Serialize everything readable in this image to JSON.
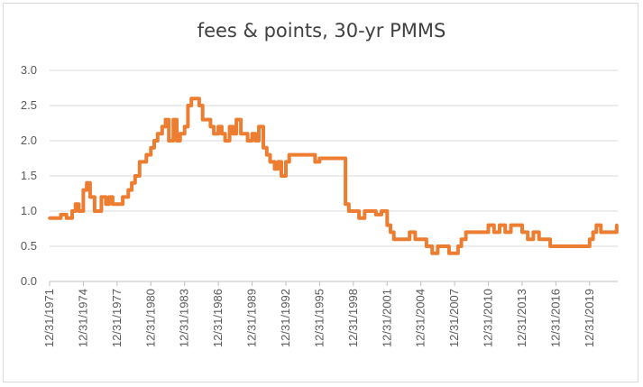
{
  "chart_data": {
    "type": "line",
    "title": "fees & points, 30-yr PMMS",
    "xlabel": "",
    "ylabel": "",
    "ylim": [
      0,
      3
    ],
    "yticks": [
      "0.0",
      "0.5",
      "1.0",
      "1.5",
      "2.0",
      "2.5",
      "3.0"
    ],
    "xticks": [
      "12/31/1971",
      "12/31/1974",
      "12/31/1977",
      "12/31/1980",
      "12/31/1983",
      "12/31/1986",
      "12/31/1989",
      "12/31/1992",
      "12/31/1995",
      "12/31/1998",
      "12/31/2001",
      "12/31/2004",
      "12/31/2007",
      "12/31/2010",
      "12/31/2013",
      "12/31/2016",
      "12/31/2019"
    ],
    "grid": true,
    "legend": "none",
    "colors": {
      "line": "#ED7D31",
      "grid": "#d9d9d9",
      "axis": "#bfbfbf"
    },
    "series": [
      {
        "x": [
          1971.0,
          1971.5,
          1972.0,
          1972.5,
          1973.0,
          1973.3,
          1973.6,
          1974.0,
          1974.3,
          1974.6,
          1975.0,
          1975.3,
          1975.6,
          1976.0,
          1976.3,
          1976.6,
          1977.0,
          1977.5,
          1978.0,
          1978.3,
          1978.6,
          1979.0,
          1979.3,
          1979.6,
          1980.0,
          1980.3,
          1980.6,
          1981.0,
          1981.3,
          1981.6,
          1982.0,
          1982.3,
          1982.6,
          1983.0,
          1983.3,
          1983.6,
          1984.0,
          1984.3,
          1984.6,
          1985.0,
          1985.3,
          1985.6,
          1986.0,
          1986.3,
          1986.6,
          1987.0,
          1987.3,
          1987.6,
          1988.0,
          1988.3,
          1988.6,
          1989.0,
          1989.3,
          1989.6,
          1990.0,
          1990.3,
          1990.6,
          1991.0,
          1991.3,
          1991.6,
          1992.0,
          1992.3,
          1992.6,
          1993.0,
          1993.3,
          1993.6,
          1994.0,
          1994.3,
          1994.6,
          1995.0,
          1995.5,
          1996.0,
          1996.5,
          1997.0,
          1997.3,
          1997.6,
          1998.0,
          1998.5,
          1999.0,
          1999.5,
          2000.0,
          2000.5,
          2001.0,
          2001.3,
          2001.6,
          2002.0,
          2002.5,
          2003.0,
          2003.5,
          2004.0,
          2004.5,
          2005.0,
          2005.5,
          2006.0,
          2006.5,
          2007.0,
          2007.3,
          2007.6,
          2008.0,
          2008.5,
          2009.0,
          2009.5,
          2010.0,
          2010.5,
          2011.0,
          2011.5,
          2012.0,
          2012.5,
          2013.0,
          2013.5,
          2014.0,
          2014.5,
          2015.0,
          2015.5,
          2016.0,
          2016.5,
          2017.0,
          2017.5,
          2018.0,
          2018.5,
          2019.0,
          2019.3,
          2019.6,
          2020.0,
          2020.5,
          2021.0,
          2021.4
        ],
        "values": [
          0.9,
          0.9,
          0.95,
          0.9,
          1.0,
          1.1,
          1.0,
          1.3,
          1.4,
          1.2,
          1.0,
          1.0,
          1.2,
          1.1,
          1.2,
          1.1,
          1.1,
          1.2,
          1.3,
          1.4,
          1.5,
          1.7,
          1.7,
          1.8,
          1.9,
          2.0,
          2.1,
          2.2,
          2.3,
          2.0,
          2.3,
          2.0,
          2.1,
          2.2,
          2.5,
          2.6,
          2.6,
          2.5,
          2.3,
          2.3,
          2.2,
          2.1,
          2.2,
          2.1,
          2.0,
          2.2,
          2.1,
          2.3,
          2.1,
          2.1,
          2.0,
          2.1,
          2.0,
          2.2,
          1.9,
          1.8,
          1.7,
          1.6,
          1.7,
          1.5,
          1.7,
          1.8,
          1.8,
          1.8,
          1.8,
          1.8,
          1.8,
          1.8,
          1.7,
          1.75,
          1.75,
          1.75,
          1.75,
          1.75,
          1.1,
          1.0,
          1.0,
          0.9,
          1.0,
          1.0,
          0.95,
          1.0,
          0.8,
          0.7,
          0.6,
          0.6,
          0.6,
          0.7,
          0.6,
          0.6,
          0.5,
          0.4,
          0.5,
          0.5,
          0.4,
          0.4,
          0.5,
          0.6,
          0.7,
          0.7,
          0.7,
          0.7,
          0.8,
          0.7,
          0.8,
          0.7,
          0.8,
          0.8,
          0.7,
          0.6,
          0.7,
          0.6,
          0.6,
          0.5,
          0.5,
          0.5,
          0.5,
          0.5,
          0.5,
          0.5,
          0.6,
          0.7,
          0.8,
          0.7,
          0.7,
          0.7,
          0.8
        ]
      }
    ]
  }
}
